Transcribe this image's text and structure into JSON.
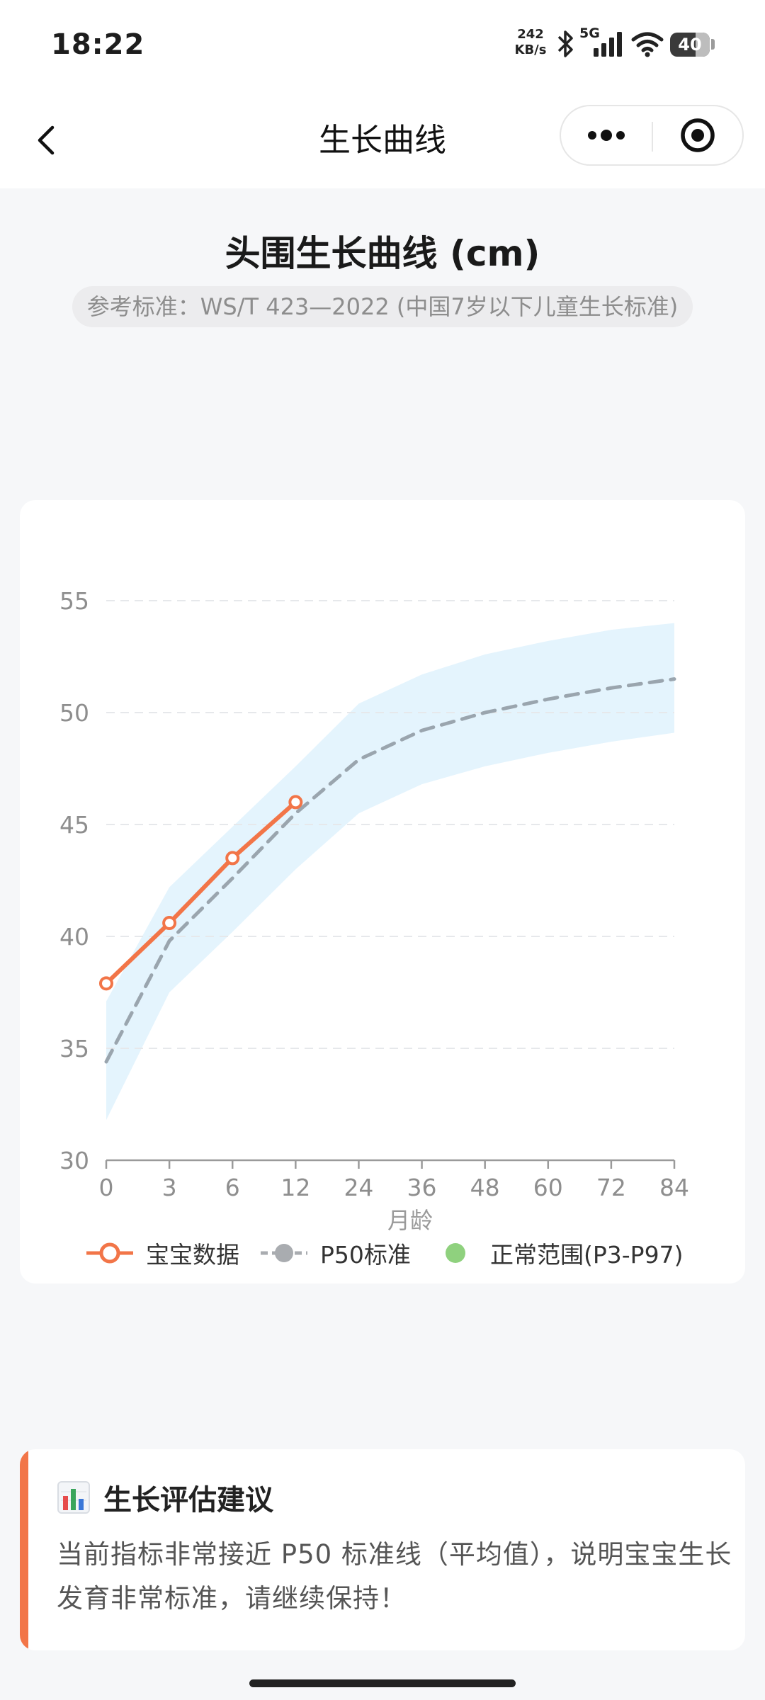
{
  "status_bar": {
    "time": "18:22",
    "network_speed_value": "242",
    "network_speed_unit": "KB/s",
    "signal_type": "5G",
    "battery_level": "40",
    "icons": [
      "bluetooth-icon",
      "signal-bars-icon",
      "wifi-icon",
      "battery-icon"
    ]
  },
  "nav": {
    "title": "生长曲线",
    "back_icon": "chevron-left-icon",
    "more_icon": "more-dots-icon",
    "target_icon": "target-icon"
  },
  "header": {
    "title": "头围生长曲线 (cm)",
    "reference": "参考标准：WS/T 423—2022 (中国7岁以下儿童生长标准)"
  },
  "chart_data": {
    "type": "line",
    "title": "",
    "xlabel": "月龄",
    "ylabel": "",
    "x_ticks": [
      "0",
      "3",
      "6",
      "12",
      "24",
      "36",
      "48",
      "60",
      "72",
      "84"
    ],
    "x_category_months": [
      0,
      3,
      6,
      12,
      24,
      36,
      48,
      60,
      72,
      84
    ],
    "ylim": [
      30,
      55
    ],
    "y_ticks": [
      30,
      35,
      40,
      45,
      50,
      55
    ],
    "grid": true,
    "legend_position": "bottom",
    "series": [
      {
        "name": "宝宝数据",
        "style": "solid-with-hollow-markers",
        "color": "#f27548",
        "x": [
          0,
          3,
          6,
          12
        ],
        "values": [
          37.9,
          40.6,
          43.5,
          46.0
        ]
      },
      {
        "name": "P50标准",
        "style": "dashed",
        "color": "#9aa5ae",
        "x": [
          0,
          3,
          6,
          12,
          24,
          36,
          48,
          60,
          72,
          84
        ],
        "values": [
          34.4,
          39.8,
          42.6,
          45.5,
          47.9,
          49.2,
          50.0,
          50.6,
          51.1,
          51.5
        ]
      }
    ],
    "bands": [
      {
        "name": "正常范围(P3-P97)",
        "legend_color": "#8fd17e",
        "fill_color": "#e4f4fd",
        "x": [
          0,
          3,
          6,
          12,
          24,
          36,
          48,
          60,
          72,
          84
        ],
        "lower": [
          31.8,
          37.5,
          40.2,
          43.0,
          45.5,
          46.8,
          47.6,
          48.2,
          48.7,
          49.1
        ],
        "upper": [
          37.1,
          42.2,
          44.9,
          47.6,
          50.4,
          51.7,
          52.6,
          53.2,
          53.7,
          54.0
        ]
      }
    ]
  },
  "legend": {
    "items": [
      {
        "label": "宝宝数据",
        "color": "#f27548"
      },
      {
        "label": "P50标准",
        "color": "#a9acb0"
      },
      {
        "label": "正常范围(P3-P97)",
        "color": "#8fd17e"
      }
    ]
  },
  "advice": {
    "icon": "bar-chart-icon",
    "title": "生长评估建议",
    "body": "当前指标非常接近 P50 标准线（平均值），说明宝宝生长发育非常标准，请继续保持！"
  }
}
